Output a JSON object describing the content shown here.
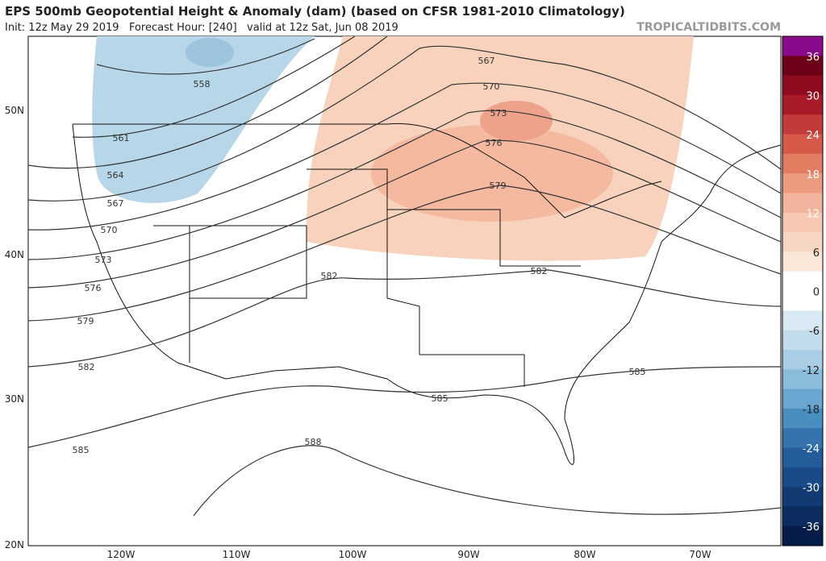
{
  "header": {
    "title": "EPS 500mb Geopotential Height & Anomaly (dam) (based on CFSR 1981-2010 Climatology)",
    "subtitle": "Init: 12z May 29 2019   Forecast Hour: [240]   valid at 12z Sat, Jun 08 2019",
    "watermark": "TROPICALTIDBITS.COM"
  },
  "map": {
    "latitude_labels": [
      "50N",
      "40N",
      "30N",
      "20N"
    ],
    "longitude_labels": [
      "120W",
      "110W",
      "100W",
      "90W",
      "80W",
      "70W"
    ],
    "contour_labels": [
      "558",
      "561",
      "564",
      "567",
      "570",
      "573",
      "576",
      "579",
      "582",
      "585",
      "567",
      "570",
      "573",
      "576",
      "579",
      "582",
      "582",
      "585",
      "585",
      "588"
    ]
  },
  "colorbar": {
    "labels": [
      "36",
      "30",
      "24",
      "18",
      "12",
      "6",
      "0",
      "-6",
      "-12",
      "-18",
      "-24",
      "-30",
      "-36"
    ]
  }
}
